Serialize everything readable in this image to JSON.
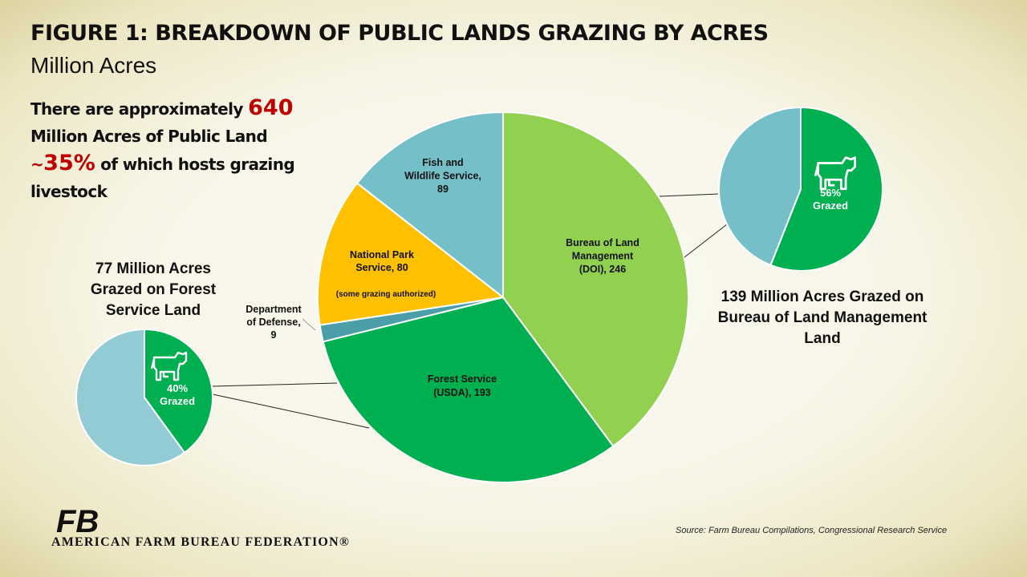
{
  "title": "FIGURE 1: BREAKDOWN OF PUBLIC LANDS GRAZING BY ACRES",
  "subtitle": "Million Acres",
  "intro": {
    "line1_pre": "There are approximately ",
    "total": "640",
    "line2": "Million Acres of Public Land",
    "tilde": "~",
    "percent": "35%",
    "line3_post": " of which hosts grazing",
    "line4": "livestock"
  },
  "callout_left": "77 Million Acres Grazed on Forest Service Land",
  "callout_right": "139 Million Acres Grazed on Bureau of Land Management Land",
  "source": "Source: Farm Bureau Compilations,  Congressional Research Service",
  "organization": "AMERICAN FARM BUREAU FEDERATION®",
  "logo_text": "FB",
  "colors": {
    "blm": "#92d050",
    "forest": "#00b050",
    "dod": "#4a9ea8",
    "nps": "#ffc000",
    "fws": "#75bfc8",
    "small_pie_remainder": "#92cbd4",
    "highlight_red": "#c00000"
  },
  "chart_data": [
    {
      "type": "pie",
      "title": "FIGURE 1: BREAKDOWN OF PUBLIC LANDS GRAZING BY ACRES",
      "units": "Million Acres",
      "start": "12 o'clock, clockwise",
      "slices": [
        {
          "label": [
            "Bureau of Land",
            "Management",
            "(DOI), 246"
          ],
          "name": "Bureau of Land Management (DOI)",
          "value": 246,
          "color": "#92d050"
        },
        {
          "label": [
            "Forest Service",
            "(USDA), 193"
          ],
          "name": "Forest Service (USDA)",
          "value": 193,
          "color": "#00b050"
        },
        {
          "label": [
            "Department",
            "of Defense,",
            "9"
          ],
          "name": "Department of Defense",
          "value": 9,
          "color": "#4a9ea8"
        },
        {
          "label": [
            "National Park",
            "Service, 80"
          ],
          "note": "(some grazing authorized)",
          "name": "National Park Service",
          "value": 80,
          "color": "#ffc000"
        },
        {
          "label": [
            "Fish and",
            "Wildlife Service,",
            "89"
          ],
          "name": "Fish and Wildlife Service",
          "value": 89,
          "color": "#75bfc8"
        }
      ]
    },
    {
      "type": "pie",
      "subject": "Forest Service Land",
      "slices": [
        {
          "label": [
            "40%",
            "Grazed"
          ],
          "value": 40,
          "color": "#00b050",
          "icon": "cow-icon"
        },
        {
          "label": [],
          "value": 60,
          "color": "#92cbd4"
        }
      ]
    },
    {
      "type": "pie",
      "subject": "Bureau of Land Management Land",
      "slices": [
        {
          "label": [
            "56%",
            "Grazed"
          ],
          "value": 56,
          "color": "#00b050",
          "icon": "cow-icon"
        },
        {
          "label": [],
          "value": 44,
          "color": "#75bfc8"
        }
      ]
    }
  ]
}
